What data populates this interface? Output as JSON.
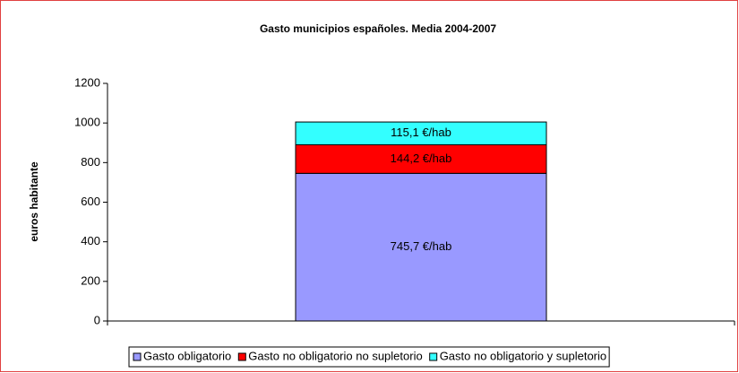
{
  "chart_data": {
    "type": "bar",
    "stacked": true,
    "title": "Gasto municipios españoles. Media 2004-2007",
    "y_label": "euros habitante",
    "categories": [
      null
    ],
    "series": [
      {
        "name": "Gasto obligatorio",
        "color": "#9999ff",
        "values": [
          745.7
        ],
        "value_labels": [
          "745,7 €/hab"
        ]
      },
      {
        "name": "Gasto no obligatorio no supletorio",
        "color": "#ff0000",
        "values": [
          144.2
        ],
        "value_labels": [
          "144,2 €/hab"
        ]
      },
      {
        "name": "Gasto no obligatorio y supletorio",
        "color": "#33ffff",
        "values": [
          115.1
        ],
        "value_labels": [
          "115,1 €/hab"
        ]
      }
    ],
    "ylim": [
      0,
      1200
    ],
    "yticks": [
      0,
      200,
      400,
      600,
      800,
      1000,
      1200
    ],
    "grid": false,
    "legend": "bottom"
  }
}
